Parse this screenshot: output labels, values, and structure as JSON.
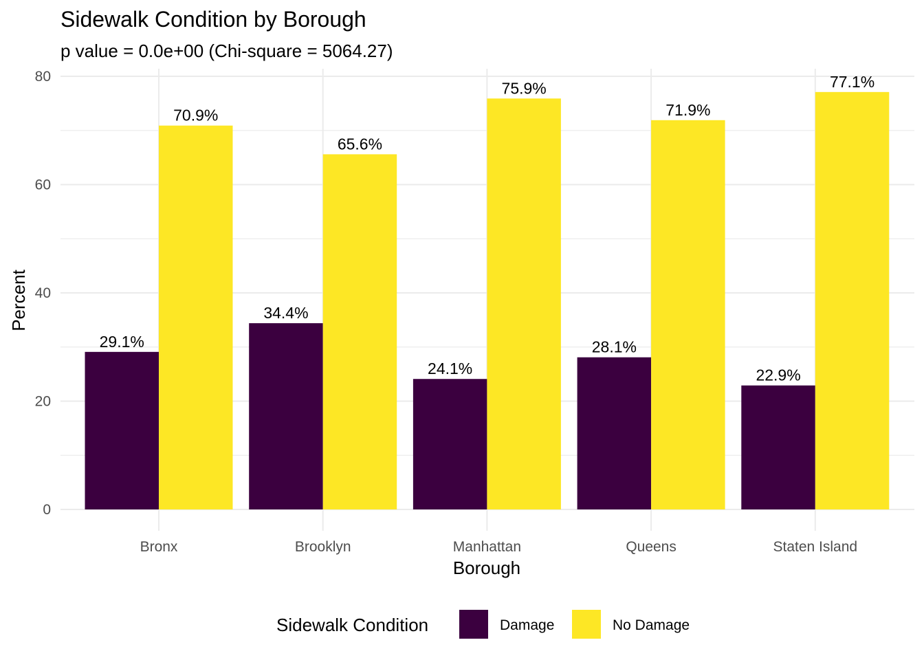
{
  "chart_data": {
    "type": "bar",
    "title": "Sidewalk Condition by Borough",
    "subtitle": "p value = 0.0e+00 (Chi-square = 5064.27)",
    "xlabel": "Borough",
    "ylabel": "Percent",
    "categories": [
      "Bronx",
      "Brooklyn",
      "Manhattan",
      "Queens",
      "Staten Island"
    ],
    "series": [
      {
        "name": "Damage",
        "color": "#3b003f",
        "values": [
          29.1,
          34.4,
          24.1,
          28.1,
          22.9
        ],
        "labels": [
          "29.1%",
          "34.4%",
          "24.1%",
          "28.1%",
          "22.9%"
        ]
      },
      {
        "name": "No Damage",
        "color": "#fde725",
        "values": [
          70.9,
          65.6,
          75.9,
          71.9,
          77.1
        ],
        "labels": [
          "70.9%",
          "65.6%",
          "75.9%",
          "71.9%",
          "77.1%"
        ]
      }
    ],
    "ylim": [
      0,
      80
    ],
    "yticks": [
      0,
      20,
      40,
      60,
      80
    ],
    "ytick_labels": [
      "0",
      "20",
      "40",
      "60",
      "80"
    ],
    "grid": true,
    "legend": {
      "title": "Sidewalk Condition",
      "position": "bottom"
    }
  }
}
